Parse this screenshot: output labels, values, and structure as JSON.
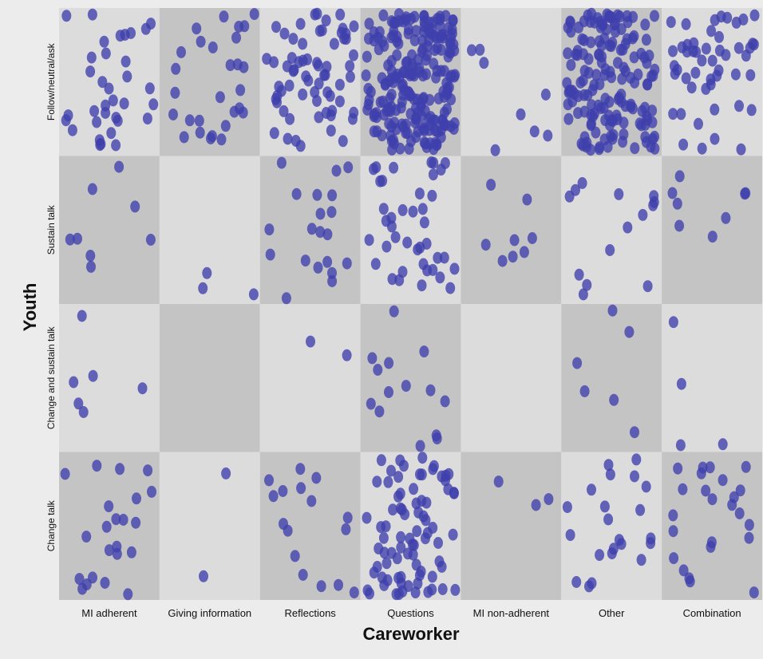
{
  "chart_data": {
    "type": "scatter",
    "subtype": "jittered-categorical-matrix",
    "title": "",
    "xlabel": "Careworker",
    "ylabel": "Youth",
    "x_categories": [
      "MI adherent",
      "Giving information",
      "Reflections",
      "Questions",
      "MI non-adherent",
      "Other",
      "Combination"
    ],
    "y_categories": [
      "Follow/neutral/ask",
      "Sustain talk",
      "Change and sustain talk",
      "Change talk"
    ],
    "counts": [
      [
        34,
        28,
        65,
        220,
        8,
        160,
        50
      ],
      [
        8,
        3,
        20,
        40,
        8,
        14,
        8
      ],
      [
        6,
        0,
        2,
        14,
        0,
        6,
        4
      ],
      [
        22,
        2,
        16,
        80,
        3,
        22,
        24
      ]
    ],
    "grid": false,
    "legend": "none",
    "colors": {
      "point": "#3f3fad",
      "cell_light": "#dcdcdc",
      "cell_dark": "#c4c4c4",
      "background": "#ececec"
    }
  }
}
